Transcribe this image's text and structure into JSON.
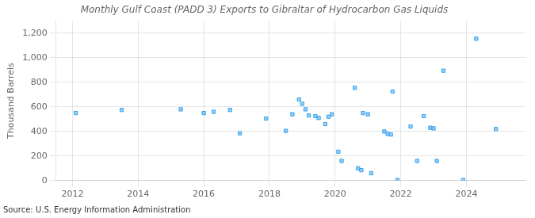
{
  "chart_data": {
    "type": "scatter",
    "title": "Monthly Gulf Coast (PADD 3) Exports to Gibraltar of Hydrocarbon Gas Liquids",
    "ylabel": "Thousand Barrels",
    "annotations": [
      "Source: U.S. Energy Information Administration"
    ],
    "marker": "square",
    "grid": true,
    "xlim": [
      2011.5,
      2025.8
    ],
    "xticks": [
      2012,
      2014,
      2016,
      2018,
      2020,
      2022,
      2024
    ],
    "ylim": [
      0,
      1300
    ],
    "yticks": [
      0,
      200,
      400,
      600,
      800,
      {
        "value": 1000,
        "label": "1,000"
      },
      {
        "value": 1200,
        "label": "1,200"
      }
    ],
    "x": [
      2012.1,
      2013.5,
      2015.3,
      2016.0,
      2016.3,
      2016.8,
      2017.1,
      2017.9,
      2018.5,
      2018.7,
      2018.9,
      2019.0,
      2019.1,
      2019.2,
      2019.4,
      2019.5,
      2019.7,
      2019.8,
      2019.9,
      2020.1,
      2020.2,
      2020.6,
      2020.7,
      2020.8,
      2020.85,
      2021.0,
      2021.1,
      2021.5,
      2021.6,
      2021.7,
      2021.75,
      2021.9,
      2022.3,
      2022.5,
      2022.7,
      2022.9,
      2023.0,
      2023.1,
      2023.3,
      2023.9,
      2024.3,
      2024.9
    ],
    "values": [
      550,
      575,
      580,
      550,
      560,
      575,
      385,
      505,
      405,
      540,
      660,
      625,
      580,
      530,
      525,
      510,
      460,
      520,
      540,
      235,
      160,
      755,
      100,
      85,
      550,
      540,
      60,
      400,
      380,
      375,
      725,
      5,
      440,
      160,
      525,
      430,
      425,
      160,
      895,
      5,
      1155,
      420
    ]
  }
}
